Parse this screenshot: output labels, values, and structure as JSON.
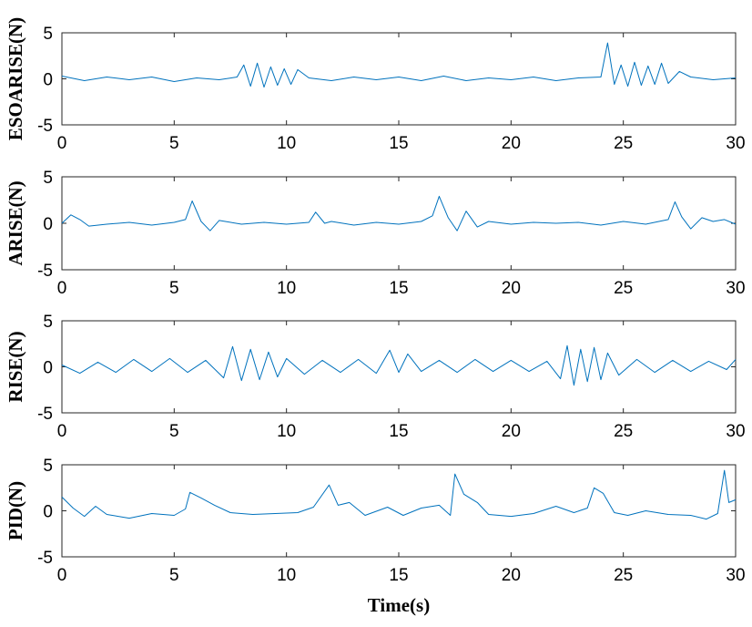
{
  "chart_data": [
    {
      "type": "line",
      "ylabel": "ESOARISE(N)",
      "xlabel": "",
      "xlim": [
        0,
        30
      ],
      "ylim": [
        -5,
        5
      ],
      "xticks": [
        "0",
        "5",
        "10",
        "15",
        "20",
        "25",
        "30"
      ],
      "yticks": [
        "5",
        "0",
        "-5"
      ],
      "color": "#0072BD",
      "grid": false,
      "series": [
        {
          "x": [
            0,
            1,
            2,
            3,
            4,
            5,
            6,
            7,
            7.8,
            8.1,
            8.4,
            8.7,
            9.0,
            9.3,
            9.6,
            9.9,
            10.2,
            10.5,
            11,
            12,
            13,
            14,
            15,
            16,
            17,
            18,
            19,
            20,
            21,
            22,
            23,
            24,
            24.3,
            24.6,
            24.9,
            25.2,
            25.5,
            25.8,
            26.1,
            26.4,
            26.7,
            27.0,
            27.5,
            28,
            29,
            30
          ],
          "y": [
            0.3,
            -0.2,
            0.2,
            -0.1,
            0.2,
            -0.3,
            0.1,
            -0.1,
            0.2,
            1.5,
            -0.8,
            1.7,
            -0.9,
            1.3,
            -0.7,
            1.1,
            -0.6,
            1.0,
            0.1,
            -0.2,
            0.2,
            -0.1,
            0.2,
            -0.2,
            0.3,
            -0.2,
            0.1,
            -0.1,
            0.2,
            -0.2,
            0.1,
            0.2,
            3.9,
            -0.6,
            1.5,
            -0.8,
            1.8,
            -0.7,
            1.4,
            -0.6,
            1.7,
            -0.5,
            0.8,
            0.2,
            -0.1,
            0.1
          ]
        }
      ]
    },
    {
      "type": "line",
      "ylabel": "ARISE(N)",
      "xlabel": "",
      "xlim": [
        0,
        30
      ],
      "ylim": [
        -5,
        5
      ],
      "xticks": [
        "0",
        "5",
        "10",
        "15",
        "20",
        "25",
        "30"
      ],
      "yticks": [
        "5",
        "0",
        "-5"
      ],
      "color": "#0072BD",
      "grid": false,
      "series": [
        {
          "x": [
            0,
            0.4,
            0.8,
            1.2,
            2,
            3,
            4,
            5,
            5.5,
            5.8,
            6.2,
            6.6,
            7,
            8,
            9,
            10,
            11,
            11.3,
            11.7,
            12,
            13,
            14,
            15,
            16,
            16.5,
            16.8,
            17.2,
            17.6,
            18,
            18.5,
            19,
            20,
            21,
            22,
            23,
            24,
            25,
            26,
            27,
            27.3,
            27.6,
            28,
            28.5,
            29,
            29.5,
            30
          ],
          "y": [
            0.0,
            0.9,
            0.4,
            -0.3,
            -0.1,
            0.1,
            -0.2,
            0.1,
            0.4,
            2.4,
            0.2,
            -0.8,
            0.3,
            -0.1,
            0.1,
            -0.1,
            0.1,
            1.2,
            0.0,
            0.2,
            -0.2,
            0.1,
            -0.1,
            0.2,
            0.8,
            2.9,
            0.6,
            -0.8,
            1.3,
            -0.4,
            0.2,
            -0.1,
            0.1,
            0.0,
            0.1,
            -0.2,
            0.2,
            -0.1,
            0.4,
            2.3,
            0.7,
            -0.6,
            0.6,
            0.2,
            0.4,
            -0.1
          ]
        }
      ]
    },
    {
      "type": "line",
      "ylabel": "RISE(N)",
      "xlabel": "",
      "xlim": [
        0,
        30
      ],
      "ylim": [
        -5,
        5
      ],
      "xticks": [
        "0",
        "5",
        "10",
        "15",
        "20",
        "25",
        "30"
      ],
      "yticks": [
        "5",
        "0",
        "-5"
      ],
      "color": "#0072BD",
      "grid": false,
      "series": [
        {
          "x": [
            0,
            0.8,
            1.6,
            2.4,
            3.2,
            4,
            4.8,
            5.6,
            6.4,
            7.2,
            7.6,
            8.0,
            8.4,
            8.8,
            9.2,
            9.6,
            10,
            10.8,
            11.6,
            12.4,
            13.2,
            14,
            14.6,
            15.0,
            15.4,
            16,
            16.8,
            17.6,
            18.4,
            19.2,
            20,
            20.8,
            21.6,
            22.2,
            22.5,
            22.8,
            23.1,
            23.4,
            23.7,
            24.0,
            24.3,
            24.8,
            25.6,
            26.4,
            27.2,
            28,
            28.8,
            29.6,
            30
          ],
          "y": [
            0.2,
            -0.7,
            0.5,
            -0.6,
            0.8,
            -0.5,
            0.9,
            -0.6,
            0.7,
            -1.2,
            2.2,
            -1.5,
            1.9,
            -1.4,
            1.6,
            -1.1,
            0.9,
            -0.8,
            0.7,
            -0.6,
            0.8,
            -0.7,
            1.8,
            -0.6,
            1.4,
            -0.5,
            0.7,
            -0.6,
            0.8,
            -0.5,
            0.7,
            -0.5,
            0.6,
            -1.3,
            2.3,
            -2.0,
            1.9,
            -1.6,
            2.1,
            -1.4,
            1.5,
            -0.9,
            0.8,
            -0.6,
            0.7,
            -0.5,
            0.6,
            -0.3,
            0.8
          ]
        }
      ]
    },
    {
      "type": "line",
      "ylabel": "PID(N)",
      "xlabel": "Time(s)",
      "xlim": [
        0,
        30
      ],
      "ylim": [
        -5,
        5
      ],
      "xticks": [
        "0",
        "5",
        "10",
        "15",
        "20",
        "25",
        "30"
      ],
      "yticks": [
        "5",
        "0",
        "-5"
      ],
      "color": "#0072BD",
      "grid": false,
      "series": [
        {
          "x": [
            0,
            0.5,
            1,
            1.5,
            2,
            3,
            4,
            5,
            5.5,
            5.7,
            6.2,
            6.8,
            7.5,
            8.5,
            9.5,
            10.5,
            11.2,
            11.9,
            12.3,
            12.8,
            13.5,
            14.5,
            15.2,
            16,
            16.8,
            17.3,
            17.5,
            17.9,
            18.5,
            19,
            20,
            21,
            22,
            22.8,
            23.4,
            23.7,
            24.1,
            24.6,
            25.2,
            26,
            27,
            28,
            28.7,
            29.2,
            29.5,
            29.7,
            30
          ],
          "y": [
            1.5,
            0.3,
            -0.6,
            0.5,
            -0.4,
            -0.8,
            -0.3,
            -0.5,
            0.2,
            2.0,
            1.4,
            0.6,
            -0.2,
            -0.4,
            -0.3,
            -0.2,
            0.4,
            2.8,
            0.6,
            0.9,
            -0.5,
            0.4,
            -0.5,
            0.3,
            0.6,
            -0.5,
            4.0,
            1.8,
            0.9,
            -0.4,
            -0.6,
            -0.3,
            0.5,
            -0.2,
            0.3,
            2.5,
            1.9,
            -0.2,
            -0.5,
            0.0,
            -0.4,
            -0.5,
            -0.9,
            -0.3,
            4.4,
            0.9,
            1.2
          ]
        }
      ]
    }
  ]
}
